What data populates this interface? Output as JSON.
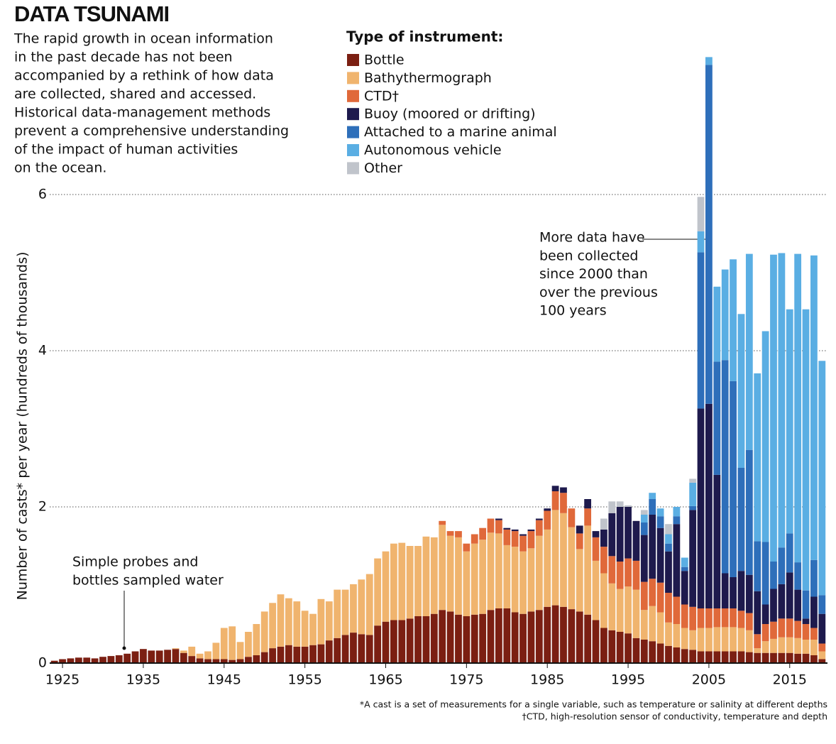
{
  "chart_data": {
    "type": "bar",
    "stacked": true,
    "title": "DATA TSUNAMI",
    "subtitle": [
      "The rapid growth in ocean information",
      "in the past decade has not been",
      "accompanied by a rethink of how data",
      "are collected, shared and accessed.",
      "Historical data-management methods",
      "prevent a comprehensive understanding",
      "of the impact of human activities",
      "on the ocean."
    ],
    "legend_title": "Type of instrument:",
    "ylabel": "Number of casts* per year (hundreds of thousands)",
    "x": [
      1924,
      1925,
      1926,
      1927,
      1928,
      1929,
      1930,
      1931,
      1932,
      1933,
      1934,
      1935,
      1936,
      1937,
      1938,
      1939,
      1940,
      1941,
      1942,
      1943,
      1944,
      1945,
      1946,
      1947,
      1948,
      1949,
      1950,
      1951,
      1952,
      1953,
      1954,
      1955,
      1956,
      1957,
      1958,
      1959,
      1960,
      1961,
      1962,
      1963,
      1964,
      1965,
      1966,
      1967,
      1968,
      1969,
      1970,
      1971,
      1972,
      1973,
      1974,
      1975,
      1976,
      1977,
      1978,
      1979,
      1980,
      1981,
      1982,
      1983,
      1984,
      1985,
      1986,
      1987,
      1988,
      1989,
      1990,
      1991,
      1992,
      1993,
      1994,
      1995,
      1996,
      1997,
      1998,
      1999,
      2000,
      2001,
      2002,
      2003,
      2004,
      2005,
      2006,
      2007,
      2008,
      2009,
      2010,
      2011,
      2012,
      2013,
      2014,
      2015,
      2016,
      2017,
      2018,
      2019
    ],
    "xlim": [
      1923.5,
      2019.5
    ],
    "xticks": [
      1925,
      1935,
      1945,
      1955,
      1965,
      1975,
      1985,
      1995,
      2005,
      2015
    ],
    "ylim": [
      0,
      8
    ],
    "yticks": [
      0,
      2,
      4,
      6
    ],
    "grid": true,
    "series": [
      {
        "name": "Bottle",
        "color": "#7b1f12",
        "values": [
          0.03,
          0.05,
          0.06,
          0.07,
          0.07,
          0.06,
          0.08,
          0.09,
          0.1,
          0.12,
          0.15,
          0.18,
          0.16,
          0.16,
          0.17,
          0.18,
          0.13,
          0.09,
          0.06,
          0.05,
          0.05,
          0.05,
          0.04,
          0.05,
          0.08,
          0.1,
          0.14,
          0.19,
          0.21,
          0.23,
          0.21,
          0.21,
          0.23,
          0.24,
          0.29,
          0.32,
          0.36,
          0.39,
          0.37,
          0.36,
          0.48,
          0.53,
          0.55,
          0.55,
          0.57,
          0.6,
          0.6,
          0.63,
          0.68,
          0.66,
          0.62,
          0.6,
          0.62,
          0.63,
          0.68,
          0.7,
          0.7,
          0.65,
          0.63,
          0.66,
          0.68,
          0.72,
          0.74,
          0.72,
          0.69,
          0.66,
          0.62,
          0.55,
          0.45,
          0.42,
          0.4,
          0.38,
          0.32,
          0.3,
          0.28,
          0.25,
          0.22,
          0.2,
          0.18,
          0.17,
          0.15,
          0.15,
          0.15,
          0.15,
          0.15,
          0.15,
          0.14,
          0.13,
          0.13,
          0.13,
          0.13,
          0.13,
          0.12,
          0.12,
          0.1,
          0.05
        ]
      },
      {
        "name": "Bathythermograph",
        "color": "#f0b46e",
        "values": [
          0,
          0,
          0,
          0,
          0,
          0,
          0,
          0,
          0,
          0,
          0,
          0,
          0,
          0,
          0,
          0.01,
          0.03,
          0.12,
          0.06,
          0.1,
          0.21,
          0.4,
          0.43,
          0.22,
          0.32,
          0.4,
          0.52,
          0.58,
          0.67,
          0.6,
          0.58,
          0.46,
          0.4,
          0.58,
          0.5,
          0.62,
          0.58,
          0.62,
          0.7,
          0.78,
          0.86,
          0.9,
          0.98,
          0.99,
          0.93,
          0.9,
          1.02,
          0.98,
          1.09,
          0.97,
          0.99,
          0.83,
          0.91,
          0.95,
          0.99,
          0.96,
          0.81,
          0.84,
          0.8,
          0.81,
          0.95,
          0.99,
          1.22,
          1.2,
          1.05,
          0.8,
          1.14,
          0.76,
          0.7,
          0.6,
          0.55,
          0.6,
          0.62,
          0.38,
          0.45,
          0.4,
          0.3,
          0.3,
          0.27,
          0.25,
          0.3,
          0.3,
          0.31,
          0.31,
          0.31,
          0.3,
          0.28,
          0.06,
          0.15,
          0.18,
          0.2,
          0.2,
          0.2,
          0.18,
          0.2,
          0.1
        ]
      },
      {
        "name": "CTD†",
        "color": "#e0693a",
        "values": [
          0,
          0,
          0,
          0,
          0,
          0,
          0,
          0,
          0,
          0,
          0,
          0,
          0,
          0,
          0,
          0,
          0,
          0,
          0,
          0,
          0,
          0,
          0,
          0,
          0,
          0,
          0,
          0,
          0,
          0,
          0,
          0,
          0,
          0,
          0,
          0,
          0,
          0,
          0,
          0,
          0,
          0,
          0,
          0,
          0,
          0,
          0,
          0,
          0.05,
          0.06,
          0.08,
          0.1,
          0.12,
          0.15,
          0.18,
          0.17,
          0.2,
          0.2,
          0.2,
          0.22,
          0.2,
          0.24,
          0.24,
          0.26,
          0.24,
          0.2,
          0.22,
          0.3,
          0.34,
          0.35,
          0.35,
          0.36,
          0.37,
          0.36,
          0.35,
          0.38,
          0.38,
          0.35,
          0.3,
          0.3,
          0.25,
          0.25,
          0.24,
          0.24,
          0.24,
          0.22,
          0.22,
          0.18,
          0.22,
          0.22,
          0.24,
          0.24,
          0.22,
          0.2,
          0.15,
          0.1
        ]
      },
      {
        "name": "Buoy (moored or drifting)",
        "color": "#1e1a4d",
        "values": [
          0,
          0,
          0,
          0,
          0,
          0,
          0,
          0,
          0,
          0,
          0,
          0,
          0,
          0,
          0,
          0,
          0,
          0,
          0,
          0,
          0,
          0,
          0,
          0,
          0,
          0,
          0,
          0,
          0,
          0,
          0,
          0,
          0,
          0,
          0,
          0,
          0,
          0,
          0,
          0,
          0,
          0,
          0,
          0,
          0,
          0,
          0,
          0,
          0,
          0,
          0,
          0,
          0,
          0,
          0,
          0.02,
          0.02,
          0.02,
          0.02,
          0.02,
          0.02,
          0.03,
          0.07,
          0.07,
          0,
          0.1,
          0.12,
          0.08,
          0.22,
          0.55,
          0.7,
          0.66,
          0.51,
          0.6,
          0.82,
          0.7,
          0.53,
          0.93,
          0.43,
          1.24,
          2.56,
          2.62,
          1.71,
          0.45,
          0.4,
          0.51,
          0.49,
          0.55,
          0.25,
          0.42,
          0.44,
          0.59,
          0.4,
          0.07,
          0.4,
          0.38
        ]
      },
      {
        "name": "Attached to a marine animal",
        "color": "#2e6fba",
        "values": [
          0,
          0,
          0,
          0,
          0,
          0,
          0,
          0,
          0,
          0,
          0,
          0,
          0,
          0,
          0,
          0,
          0,
          0,
          0,
          0,
          0,
          0,
          0,
          0,
          0,
          0,
          0,
          0,
          0,
          0,
          0,
          0,
          0,
          0,
          0,
          0,
          0,
          0,
          0,
          0,
          0,
          0,
          0,
          0,
          0,
          0,
          0,
          0,
          0,
          0,
          0,
          0,
          0,
          0,
          0,
          0,
          0,
          0,
          0,
          0,
          0,
          0,
          0,
          0,
          0,
          0,
          0,
          0,
          0,
          0,
          0,
          0,
          0,
          0.16,
          0.2,
          0.15,
          0.1,
          0.1,
          0.05,
          0.05,
          2.0,
          4.34,
          1.45,
          2.73,
          2.51,
          1.32,
          1.6,
          0.64,
          0.8,
          0.35,
          0.47,
          0.5,
          0.35,
          0.36,
          0.47,
          0.24
        ]
      },
      {
        "name": "Autonomous vehicle",
        "color": "#5aaee3",
        "values": [
          0,
          0,
          0,
          0,
          0,
          0,
          0,
          0,
          0,
          0,
          0,
          0,
          0,
          0,
          0,
          0,
          0,
          0,
          0,
          0,
          0,
          0,
          0,
          0,
          0,
          0,
          0,
          0,
          0,
          0,
          0,
          0,
          0,
          0,
          0,
          0,
          0,
          0,
          0,
          0,
          0,
          0,
          0,
          0,
          0,
          0,
          0,
          0,
          0,
          0,
          0,
          0,
          0,
          0,
          0,
          0,
          0,
          0,
          0,
          0,
          0,
          0,
          0,
          0,
          0,
          0,
          0,
          0,
          0,
          0,
          0,
          0,
          0,
          0.1,
          0.08,
          0.1,
          0.12,
          0.12,
          0.12,
          0.3,
          0.27,
          0.1,
          0.96,
          1.16,
          1.56,
          1.97,
          2.51,
          2.15,
          2.7,
          3.93,
          3.77,
          2.87,
          3.95,
          3.6,
          3.9,
          3.0
        ]
      },
      {
        "name": "Other",
        "color": "#c0c4cb",
        "values": [
          0,
          0,
          0,
          0,
          0,
          0,
          0,
          0,
          0,
          0,
          0,
          0,
          0,
          0,
          0,
          0,
          0,
          0,
          0,
          0,
          0,
          0,
          0,
          0,
          0,
          0,
          0,
          0,
          0,
          0,
          0,
          0,
          0,
          0,
          0,
          0,
          0,
          0,
          0,
          0,
          0,
          0,
          0,
          0,
          0,
          0,
          0,
          0,
          0,
          0,
          0,
          0,
          0,
          0,
          0,
          0,
          0,
          0,
          0,
          0,
          0,
          0,
          0,
          0,
          0,
          0,
          0,
          0,
          0.14,
          0.15,
          0.07,
          0.02,
          0,
          0.06,
          0,
          0,
          0.13,
          0,
          0,
          0.05,
          0.44,
          0,
          0,
          0,
          0,
          0,
          0,
          0,
          0,
          0,
          0,
          0,
          0,
          0,
          0,
          0
        ]
      }
    ],
    "annotations": [
      {
        "text": [
          "More data have",
          "been collected",
          "since 2000 than",
          "over the previous",
          "100 years"
        ]
      },
      {
        "text": [
          "Simple probes and",
          "bottles sampled water"
        ]
      }
    ],
    "footnotes": [
      "*A cast is a set of measurements for a single variable, such as temperature or salinity at different depths",
      "†CTD, high-resolution sensor of conductivity, temperature and depth"
    ]
  }
}
